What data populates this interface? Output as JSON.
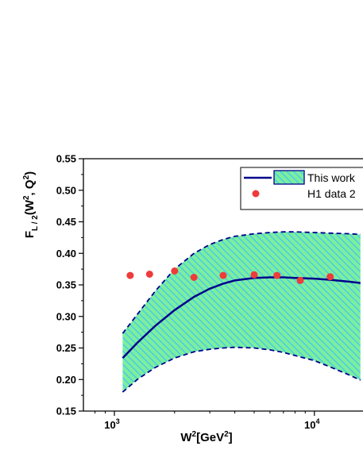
{
  "chart_data": {
    "type": "line",
    "title": "",
    "xlabel": {
      "base": "W",
      "sup1": "2",
      "mid": "[GeV",
      "sup2": "2",
      "end": "]"
    },
    "ylabel": {
      "base": "F",
      "sub": "L / 2",
      "mid1": "(W",
      "sup1": "2",
      "mid2": ", Q",
      "sup2": "2",
      "end": ")"
    },
    "x_scale": "log",
    "xlim": [
      700,
      17500
    ],
    "ylim": [
      0.15,
      0.55
    ],
    "x_ticks": [
      {
        "value": 1000,
        "base": "10",
        "exp": "3"
      },
      {
        "value": 10000,
        "base": "10",
        "exp": "4"
      }
    ],
    "y_ticks": [
      "0.15",
      "0.20",
      "0.25",
      "0.30",
      "0.35",
      "0.40",
      "0.45",
      "0.50",
      "0.55"
    ],
    "grid": false,
    "legend_position": "top-right",
    "series": [
      {
        "name": "This work",
        "kind": "band-with-central-line",
        "color": "#00008b",
        "band_fill": "#7dee9e",
        "band_hatch": "#42c8ee",
        "x": [
          1100,
          1300,
          1600,
          2000,
          2500,
          3000,
          3500,
          4000,
          5000,
          6000,
          7000,
          8000,
          10000,
          12000,
          15000,
          17000
        ],
        "central": [
          0.234,
          0.258,
          0.285,
          0.31,
          0.331,
          0.344,
          0.352,
          0.357,
          0.361,
          0.362,
          0.362,
          0.361,
          0.36,
          0.358,
          0.355,
          0.353
        ],
        "upper": [
          0.273,
          0.303,
          0.34,
          0.375,
          0.4,
          0.414,
          0.422,
          0.427,
          0.431,
          0.433,
          0.434,
          0.434,
          0.433,
          0.432,
          0.431,
          0.43
        ],
        "lower": [
          0.18,
          0.2,
          0.219,
          0.234,
          0.244,
          0.248,
          0.25,
          0.251,
          0.25,
          0.247,
          0.243,
          0.238,
          0.23,
          0.22,
          0.207,
          0.199
        ]
      },
      {
        "name": "H1 data 2",
        "kind": "scatter",
        "color": "#ee3b3b",
        "x": [
          1200,
          1500,
          2000,
          2500,
          3500,
          5000,
          6500,
          8500,
          12000
        ],
        "y": [
          0.365,
          0.367,
          0.372,
          0.362,
          0.365,
          0.366,
          0.365,
          0.357,
          0.363
        ]
      }
    ]
  }
}
